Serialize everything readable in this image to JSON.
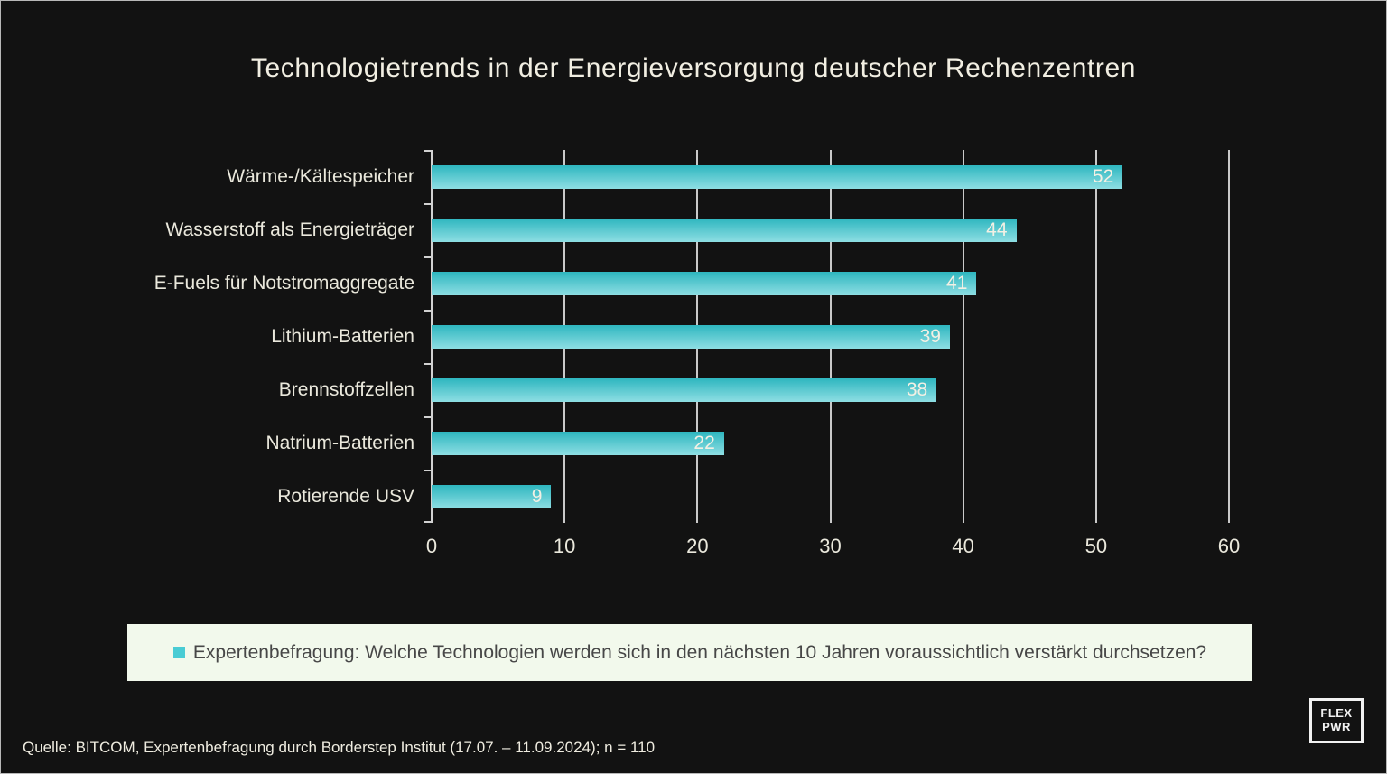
{
  "title": "Technologietrends in der Energieversorgung deutscher Rechenzentren",
  "chart_data": {
    "type": "bar",
    "orientation": "horizontal",
    "title": "Technologietrends in der Energieversorgung deutscher Rechenzentren",
    "categories": [
      "Wärme-/Kältespeicher",
      "Wasserstoff als Energieträger",
      "E-Fuels für Notstromaggregate",
      "Lithium-Batterien",
      "Brennstoffzellen",
      "Natrium-Batterien",
      "Rotierende USV"
    ],
    "values": [
      52,
      44,
      41,
      39,
      38,
      22,
      9
    ],
    "series_name": "Expertenbefragung: Welche Technologien werden sich in den nächsten 10 Jahren voraussichtlich verstärkt durchsetzen?",
    "xlim": [
      0,
      60
    ],
    "x_ticks": [
      0,
      10,
      20,
      30,
      40,
      50,
      60
    ],
    "grid": true,
    "legend_position": "bottom",
    "value_labels": "inside-end"
  },
  "legend": {
    "label": "Expertenbefragung: Welche Technologien werden sich in den nächsten 10 Jahren voraussichtlich verstärkt durchsetzen?"
  },
  "footer": {
    "source": "Quelle: BITCOM, Expertenbefragung durch Borderstep Institut (17.07. – 11.09.2024); n = 110"
  },
  "logo": {
    "line1": "FLEX",
    "line2": "PWR"
  },
  "colors": {
    "background": "#121212",
    "bar_gradient_top": "#2eb6bf",
    "bar_gradient_bottom": "#8edee3",
    "grid": "#c9c9c9",
    "text": "#f1eee2",
    "legend_background": "#f2f9ec",
    "legend_text": "#474747",
    "legend_swatch": "#49ccd4"
  }
}
